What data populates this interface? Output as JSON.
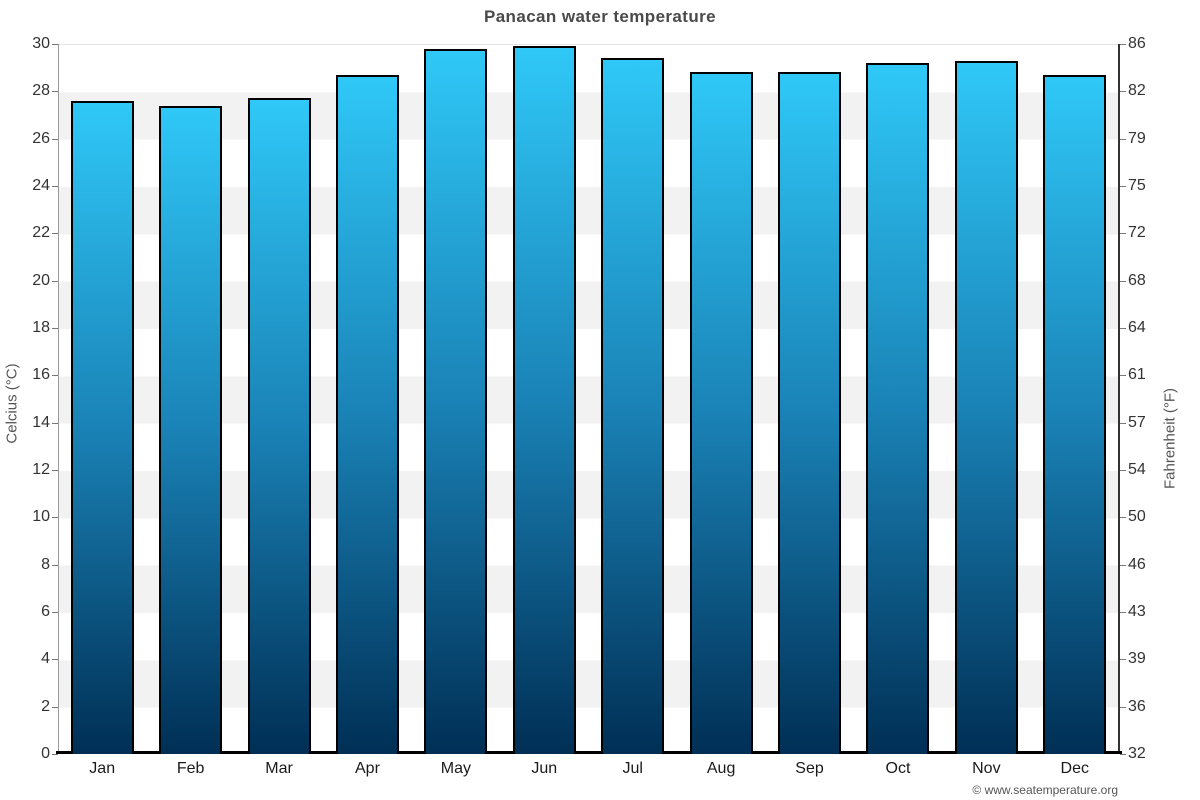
{
  "title": "Panacan water temperature",
  "footer": {
    "credit": "© www.seatemperature.org"
  },
  "chart_data": {
    "type": "bar",
    "title": "Panacan water temperature",
    "categories": [
      "Jan",
      "Feb",
      "Mar",
      "Apr",
      "May",
      "Jun",
      "Jul",
      "Aug",
      "Sep",
      "Oct",
      "Nov",
      "Dec"
    ],
    "values": [
      27.6,
      27.4,
      27.7,
      28.7,
      29.8,
      29.9,
      29.4,
      28.8,
      28.8,
      29.2,
      29.3,
      28.7
    ],
    "unit": "°C",
    "ylabel_left": "Celcius (°C)",
    "ylabel_right": "Fahrenheit (°F)",
    "ylim_left": [
      0,
      30
    ],
    "yticks_left": [
      0,
      2,
      4,
      6,
      8,
      10,
      12,
      14,
      16,
      18,
      20,
      22,
      24,
      26,
      28,
      30
    ],
    "yticks_right_labels": [
      32,
      36,
      39,
      43,
      46,
      50,
      54,
      57,
      61,
      64,
      68,
      72,
      75,
      79,
      82,
      86
    ],
    "xlabel": "",
    "grid": "alternating-horizontal-bands",
    "legend_position": "none",
    "colors": {
      "bar_gradient_top": "#2fc8f7",
      "bar_gradient_mid": "#1a82b6",
      "bar_gradient_bottom": "#002f55",
      "bar_border": "#000000",
      "band_gray": "#f2f2f2",
      "band_white": "#ffffff",
      "baseline": "#000000",
      "title_color": "#4a4a4a",
      "tick_color": "#333333",
      "footer_color": "#555555"
    }
  }
}
